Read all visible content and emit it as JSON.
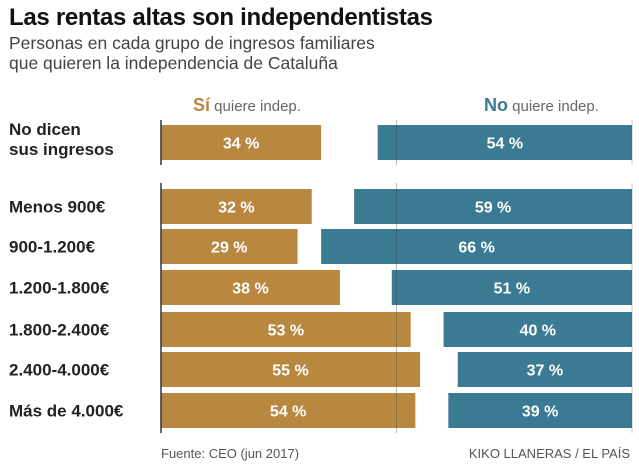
{
  "header": {
    "title": "Las rentas altas son independentistas",
    "subtitle_line1": "Personas en cada grupo de ingresos familiares",
    "subtitle_line2": "que quieren la independencia de Cataluña"
  },
  "legend": {
    "si_bold": "Sí",
    "si_rest": " quiere indep.",
    "no_bold": "No",
    "no_rest": " quiere indep."
  },
  "footer": {
    "source": "Fuente: CEO (jun 2017)",
    "credit": "KIKO LLANERAS / EL PAÍS"
  },
  "chart_data": {
    "type": "bar",
    "orientation": "horizontal",
    "title": "Las rentas altas son independentistas",
    "subtitle": "Personas en cada grupo de ingresos familiares que quieren la independencia de Cataluña",
    "categories": [
      [
        "No dicen",
        "sus ingresos"
      ],
      [
        "Menos 900€"
      ],
      [
        "900-1.200€"
      ],
      [
        "1.200-1.800€"
      ],
      [
        "1.800-2.400€"
      ],
      [
        "2.400-4.000€"
      ],
      [
        "Más de 4.000€"
      ]
    ],
    "series": [
      {
        "name": "Sí quiere indep.",
        "color": "#b98840",
        "values": [
          34,
          32,
          29,
          38,
          53,
          55,
          54
        ],
        "anchor": "left"
      },
      {
        "name": "No quiere indep.",
        "color": "#3b7a93",
        "values": [
          54,
          59,
          66,
          51,
          40,
          37,
          39
        ],
        "anchor": "right"
      }
    ],
    "value_suffix": " %",
    "xlim": [
      0,
      100
    ],
    "gridlines": [
      50
    ],
    "legend_position": "top",
    "source": "Fuente: CEO (jun 2017)",
    "credit": "KIKO LLANERAS / EL PAÍS"
  }
}
